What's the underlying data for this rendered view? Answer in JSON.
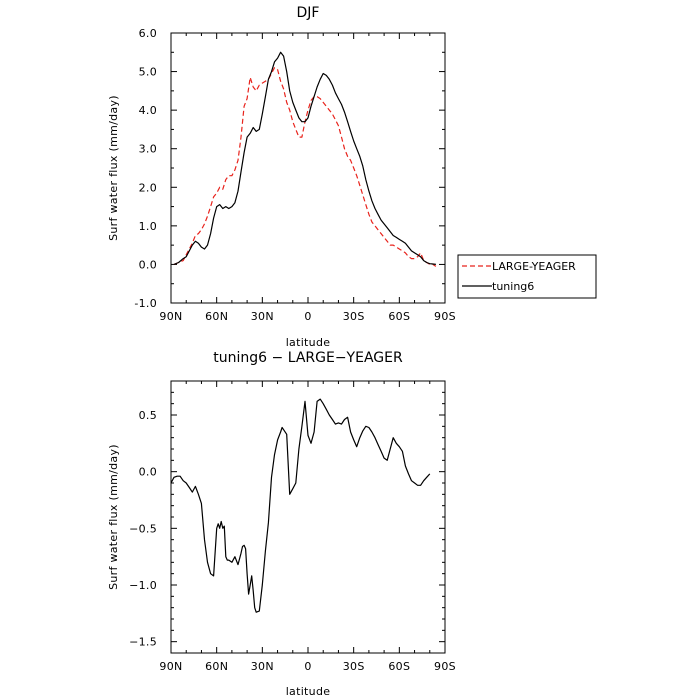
{
  "chart_data": [
    {
      "type": "line",
      "title": "DJF",
      "xlabel": "latitude",
      "ylabel": "Surf water flux (mm/day)",
      "xlim": [
        90,
        -90
      ],
      "ylim": [
        -1.0,
        6.0
      ],
      "x_ticks": [
        90,
        60,
        30,
        0,
        -30,
        -60,
        -90
      ],
      "x_tick_labels": [
        "90N",
        "60N",
        "30N",
        "0",
        "30S",
        "60S",
        "90S"
      ],
      "y_ticks": [
        -1.0,
        0.0,
        1.0,
        2.0,
        3.0,
        4.0,
        5.0,
        6.0
      ],
      "y_tick_labels": [
        "-1.0",
        "0.0",
        "1.0",
        "2.0",
        "3.0",
        "4.0",
        "5.0",
        "6.0"
      ],
      "grid": false,
      "legend_position": "right, outside plot",
      "series": [
        {
          "name": "LARGE-YEAGER",
          "color": "#e8231c",
          "dash": "dashed",
          "x": [
            88,
            85,
            82,
            80,
            78,
            76,
            74,
            72,
            70,
            68,
            66,
            64,
            62,
            60,
            58,
            56,
            54,
            52,
            50,
            48,
            46,
            44,
            42,
            40,
            38,
            36,
            34,
            32,
            30,
            28,
            26,
            24,
            22,
            20,
            18,
            16,
            14,
            12,
            10,
            8,
            6,
            4,
            2,
            0,
            -2,
            -4,
            -6,
            -8,
            -10,
            -12,
            -14,
            -16,
            -18,
            -20,
            -22,
            -24,
            -26,
            -28,
            -30,
            -32,
            -34,
            -36,
            -38,
            -40,
            -42,
            -44,
            -46,
            -48,
            -50,
            -52,
            -54,
            -56,
            -58,
            -60,
            -62,
            -64,
            -66,
            -68,
            -70,
            -72,
            -74,
            -76,
            -78,
            -80,
            -82,
            -84
          ],
          "y": [
            0.0,
            0.05,
            0.1,
            0.25,
            0.4,
            0.55,
            0.75,
            0.8,
            0.9,
            1.05,
            1.25,
            1.5,
            1.75,
            1.85,
            2.0,
            1.95,
            2.2,
            2.3,
            2.3,
            2.45,
            2.7,
            3.3,
            4.1,
            4.3,
            4.85,
            4.6,
            4.5,
            4.65,
            4.7,
            4.75,
            4.8,
            4.95,
            5.1,
            5.05,
            4.75,
            4.55,
            4.2,
            4.0,
            3.7,
            3.5,
            3.3,
            3.3,
            3.7,
            4.0,
            4.25,
            4.35,
            4.35,
            4.3,
            4.2,
            4.1,
            4.0,
            3.9,
            3.75,
            3.6,
            3.3,
            3.0,
            2.8,
            2.7,
            2.5,
            2.3,
            2.05,
            1.8,
            1.55,
            1.3,
            1.1,
            1.0,
            0.9,
            0.8,
            0.7,
            0.6,
            0.5,
            0.5,
            0.45,
            0.4,
            0.35,
            0.3,
            0.2,
            0.15,
            0.15,
            0.2,
            0.3,
            0.1,
            0.05,
            0.0,
            0.0,
            -0.05
          ]
        },
        {
          "name": "tuning6",
          "color": "#000000",
          "dash": "solid",
          "x": [
            88,
            85,
            82,
            80,
            78,
            76,
            74,
            72,
            70,
            68,
            66,
            64,
            62,
            60,
            58,
            56,
            54,
            52,
            50,
            48,
            46,
            44,
            42,
            40,
            38,
            36,
            34,
            32,
            30,
            28,
            26,
            24,
            22,
            20,
            18,
            16,
            14,
            12,
            10,
            8,
            6,
            4,
            2,
            0,
            -2,
            -4,
            -6,
            -8,
            -10,
            -12,
            -14,
            -16,
            -18,
            -20,
            -22,
            -24,
            -26,
            -28,
            -30,
            -32,
            -34,
            -36,
            -38,
            -40,
            -42,
            -44,
            -46,
            -48,
            -50,
            -52,
            -54,
            -56,
            -58,
            -60,
            -62,
            -64,
            -66,
            -68,
            -70,
            -72,
            -74,
            -76,
            -78,
            -80,
            -82,
            -84
          ],
          "y": [
            0.0,
            0.05,
            0.15,
            0.2,
            0.35,
            0.5,
            0.6,
            0.55,
            0.45,
            0.4,
            0.5,
            0.8,
            1.2,
            1.5,
            1.55,
            1.45,
            1.5,
            1.45,
            1.5,
            1.6,
            1.9,
            2.4,
            2.9,
            3.3,
            3.4,
            3.55,
            3.45,
            3.5,
            3.9,
            4.35,
            4.8,
            5.0,
            5.25,
            5.35,
            5.5,
            5.4,
            5.0,
            4.5,
            4.2,
            4.0,
            3.8,
            3.7,
            3.7,
            3.8,
            4.1,
            4.35,
            4.6,
            4.8,
            4.95,
            4.9,
            4.8,
            4.65,
            4.45,
            4.3,
            4.15,
            3.95,
            3.7,
            3.45,
            3.2,
            3.0,
            2.8,
            2.55,
            2.2,
            1.9,
            1.65,
            1.45,
            1.3,
            1.15,
            1.05,
            0.95,
            0.85,
            0.75,
            0.7,
            0.65,
            0.6,
            0.55,
            0.45,
            0.35,
            0.3,
            0.25,
            0.2,
            0.1,
            0.05,
            0.02,
            0.01,
            0.0
          ]
        }
      ]
    },
    {
      "type": "line",
      "title": "tuning6 − LARGE−YEAGER",
      "xlabel": "latitude",
      "ylabel": "Surf water flux (mm/day)",
      "xlim": [
        90,
        -90
      ],
      "ylim": [
        -1.6,
        0.8
      ],
      "x_ticks": [
        90,
        60,
        30,
        0,
        -30,
        -60,
        -90
      ],
      "x_tick_labels": [
        "90N",
        "60N",
        "30N",
        "0",
        "30S",
        "60S",
        "90S"
      ],
      "y_ticks": [
        -1.5,
        -1.0,
        -0.5,
        0.0,
        0.5
      ],
      "y_tick_labels": [
        "−1.5",
        "−1.0",
        "−0.5",
        "0.0",
        "0.5"
      ],
      "grid": false,
      "series": [
        {
          "color": "#000000",
          "dash": "solid",
          "x": [
            90,
            88,
            86,
            84,
            82,
            80,
            78,
            76,
            74,
            72,
            70,
            68,
            66,
            64,
            62,
            60,
            59,
            58,
            57,
            56,
            55,
            54,
            53,
            52,
            50,
            48,
            46,
            44,
            43,
            42,
            41,
            40,
            39,
            38,
            37,
            36,
            35,
            34,
            32,
            30,
            28,
            26,
            24,
            22,
            20,
            18,
            17,
            16,
            14,
            12,
            10,
            8,
            6,
            4,
            2,
            0,
            -2,
            -4,
            -6,
            -8,
            -10,
            -12,
            -14,
            -16,
            -18,
            -20,
            -22,
            -24,
            -26,
            -28,
            -30,
            -32,
            -34,
            -36,
            -38,
            -40,
            -42,
            -44,
            -46,
            -48,
            -50,
            -52,
            -54,
            -56,
            -58,
            -60,
            -62,
            -64,
            -66,
            -68,
            -70,
            -72,
            -74,
            -76,
            -78,
            -80
          ],
          "y": [
            -0.1,
            -0.05,
            -0.04,
            -0.04,
            -0.08,
            -0.1,
            -0.14,
            -0.18,
            -0.13,
            -0.2,
            -0.28,
            -0.6,
            -0.8,
            -0.9,
            -0.92,
            -0.5,
            -0.46,
            -0.5,
            -0.44,
            -0.5,
            -0.48,
            -0.75,
            -0.78,
            -0.78,
            -0.8,
            -0.75,
            -0.82,
            -0.72,
            -0.66,
            -0.65,
            -0.68,
            -0.9,
            -1.08,
            -1.0,
            -0.92,
            -1.05,
            -1.2,
            -1.24,
            -1.23,
            -1.0,
            -0.7,
            -0.45,
            -0.05,
            0.15,
            0.28,
            0.35,
            0.39,
            0.37,
            0.33,
            -0.2,
            -0.15,
            -0.1,
            0.2,
            0.4,
            0.62,
            0.32,
            0.25,
            0.35,
            0.62,
            0.64,
            0.6,
            0.55,
            0.5,
            0.46,
            0.42,
            0.43,
            0.42,
            0.46,
            0.48,
            0.35,
            0.28,
            0.22,
            0.3,
            0.36,
            0.4,
            0.39,
            0.35,
            0.3,
            0.24,
            0.18,
            0.12,
            0.1,
            0.2,
            0.3,
            0.25,
            0.22,
            0.18,
            0.05,
            -0.02,
            -0.08,
            -0.1,
            -0.12,
            -0.12,
            -0.08,
            -0.05,
            -0.02
          ]
        }
      ]
    }
  ]
}
